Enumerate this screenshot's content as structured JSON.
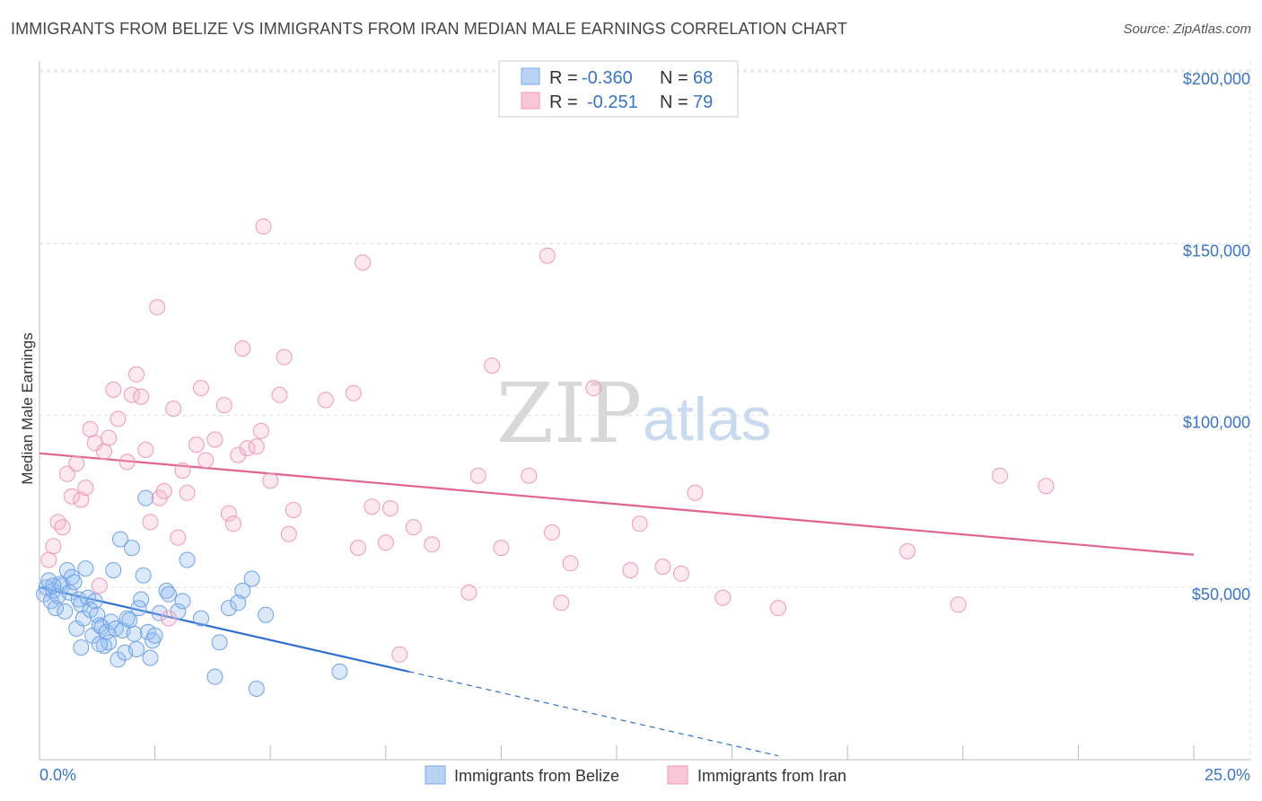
{
  "title": "IMMIGRANTS FROM BELIZE VS IMMIGRANTS FROM IRAN MEDIAN MALE EARNINGS CORRELATION CHART",
  "source": "Source: ZipAtlas.com",
  "watermark": {
    "zip": "ZIP",
    "atlas": "atlas"
  },
  "colors": {
    "belize": "#6fa3e8",
    "belize_line": "#2f6fd0",
    "iran": "#f0a0bb",
    "iran_line": "#e0648f",
    "axis_text": "#3a74c4"
  },
  "legend_box": {
    "rows": [
      {
        "r_label": "R =",
        "r_value": "-0.360",
        "n_label": "N =",
        "n_value": "68"
      },
      {
        "r_label": "R =",
        "r_value": "-0.251",
        "n_label": "N =",
        "n_value": "79"
      }
    ]
  },
  "bottom_legend": [
    "Immigrants from Belize",
    "Immigrants from Iran"
  ],
  "chart_data": {
    "type": "scatter",
    "title": "IMMIGRANTS FROM BELIZE VS IMMIGRANTS FROM IRAN MEDIAN MALE EARNINGS CORRELATION CHART",
    "xlabel": "",
    "ylabel": "Median Male Earnings",
    "xlim": [
      0,
      25
    ],
    "ylim": [
      0,
      205000
    ],
    "x_tick_labels": [
      "0.0%",
      "25.0%"
    ],
    "y_ticks": [
      50000,
      100000,
      150000,
      200000
    ],
    "y_tick_labels": [
      "$50,000",
      "$100,000",
      "$150,000",
      "$200,000"
    ],
    "series": [
      {
        "name": "Immigrants from Belize",
        "R": -0.36,
        "N": 68,
        "trend": {
          "x": [
            0,
            8
          ],
          "y": [
            50000,
            25500
          ],
          "dashed_to": [
            16,
            1000
          ]
        },
        "points": [
          [
            0.1,
            48000
          ],
          [
            0.15,
            50000
          ],
          [
            0.2,
            52000
          ],
          [
            0.25,
            46000
          ],
          [
            0.3,
            49000
          ],
          [
            0.35,
            44000
          ],
          [
            0.4,
            47500
          ],
          [
            0.45,
            51000
          ],
          [
            0.5,
            50500
          ],
          [
            0.55,
            43000
          ],
          [
            0.6,
            55000
          ],
          [
            0.65,
            48500
          ],
          [
            0.7,
            53000
          ],
          [
            0.75,
            51500
          ],
          [
            0.8,
            38000
          ],
          [
            0.85,
            46500
          ],
          [
            0.9,
            45000
          ],
          [
            0.95,
            41000
          ],
          [
            1.0,
            55500
          ],
          [
            1.05,
            47000
          ],
          [
            1.1,
            43500
          ],
          [
            1.15,
            36000
          ],
          [
            1.2,
            46000
          ],
          [
            1.25,
            42000
          ],
          [
            1.3,
            39000
          ],
          [
            1.35,
            38500
          ],
          [
            1.4,
            33000
          ],
          [
            1.45,
            37000
          ],
          [
            1.5,
            34000
          ],
          [
            1.55,
            40000
          ],
          [
            1.6,
            55000
          ],
          [
            1.65,
            38000
          ],
          [
            1.7,
            29000
          ],
          [
            1.75,
            64000
          ],
          [
            1.8,
            37500
          ],
          [
            1.85,
            31000
          ],
          [
            1.9,
            41000
          ],
          [
            1.95,
            40500
          ],
          [
            2.0,
            61500
          ],
          [
            2.05,
            36500
          ],
          [
            2.1,
            32000
          ],
          [
            2.15,
            44000
          ],
          [
            2.2,
            46500
          ],
          [
            2.25,
            53500
          ],
          [
            2.3,
            76000
          ],
          [
            2.35,
            37000
          ],
          [
            2.4,
            29500
          ],
          [
            2.45,
            34500
          ],
          [
            2.6,
            42500
          ],
          [
            2.75,
            49000
          ],
          [
            3.0,
            43000
          ],
          [
            3.1,
            46000
          ],
          [
            3.2,
            58000
          ],
          [
            3.5,
            41000
          ],
          [
            3.8,
            24000
          ],
          [
            3.9,
            34000
          ],
          [
            4.4,
            49000
          ],
          [
            4.1,
            44000
          ],
          [
            4.3,
            45500
          ],
          [
            2.5,
            36000
          ],
          [
            0.9,
            32500
          ],
          [
            1.3,
            33500
          ],
          [
            2.8,
            48000
          ],
          [
            4.6,
            52500
          ],
          [
            4.7,
            20500
          ],
          [
            4.9,
            42000
          ],
          [
            6.5,
            25500
          ],
          [
            0.3,
            50500
          ]
        ]
      },
      {
        "name": "Immigrants from Iran",
        "R": -0.251,
        "N": 79,
        "trend": {
          "x": [
            0,
            25
          ],
          "y": [
            89000,
            59500
          ]
        },
        "points": [
          [
            0.2,
            58000
          ],
          [
            0.3,
            62000
          ],
          [
            0.4,
            69000
          ],
          [
            0.5,
            67500
          ],
          [
            0.6,
            83000
          ],
          [
            0.7,
            76500
          ],
          [
            0.8,
            86000
          ],
          [
            0.9,
            75500
          ],
          [
            1.0,
            79000
          ],
          [
            1.1,
            96000
          ],
          [
            1.2,
            92000
          ],
          [
            1.3,
            50500
          ],
          [
            1.4,
            89500
          ],
          [
            1.5,
            93500
          ],
          [
            1.6,
            107500
          ],
          [
            1.7,
            99000
          ],
          [
            1.9,
            86500
          ],
          [
            2.0,
            106000
          ],
          [
            2.1,
            112000
          ],
          [
            2.2,
            105500
          ],
          [
            2.3,
            90000
          ],
          [
            2.4,
            69000
          ],
          [
            2.55,
            131500
          ],
          [
            2.6,
            76000
          ],
          [
            2.7,
            78000
          ],
          [
            2.8,
            41000
          ],
          [
            2.9,
            102000
          ],
          [
            3.0,
            64500
          ],
          [
            3.1,
            84000
          ],
          [
            3.2,
            77500
          ],
          [
            3.4,
            91500
          ],
          [
            3.5,
            108000
          ],
          [
            3.6,
            87000
          ],
          [
            3.8,
            93000
          ],
          [
            4.0,
            103000
          ],
          [
            4.1,
            71500
          ],
          [
            4.2,
            68500
          ],
          [
            4.3,
            88500
          ],
          [
            4.4,
            119500
          ],
          [
            4.5,
            90500
          ],
          [
            4.7,
            91000
          ],
          [
            4.8,
            95500
          ],
          [
            4.85,
            155000
          ],
          [
            5.0,
            81000
          ],
          [
            5.2,
            106000
          ],
          [
            5.3,
            117000
          ],
          [
            5.4,
            65500
          ],
          [
            5.5,
            72500
          ],
          [
            6.2,
            104500
          ],
          [
            6.8,
            106500
          ],
          [
            6.9,
            61500
          ],
          [
            7.0,
            144500
          ],
          [
            7.2,
            73500
          ],
          [
            7.5,
            63000
          ],
          [
            7.6,
            73000
          ],
          [
            7.8,
            30500
          ],
          [
            8.1,
            67500
          ],
          [
            8.5,
            62500
          ],
          [
            9.3,
            48500
          ],
          [
            9.5,
            82500
          ],
          [
            9.8,
            114500
          ],
          [
            10.0,
            61500
          ],
          [
            10.6,
            82500
          ],
          [
            11.0,
            146500
          ],
          [
            11.1,
            66000
          ],
          [
            11.3,
            45500
          ],
          [
            12.0,
            108000
          ],
          [
            12.8,
            55000
          ],
          [
            13.0,
            68500
          ],
          [
            13.5,
            56000
          ],
          [
            13.9,
            54000
          ],
          [
            14.2,
            77500
          ],
          [
            14.8,
            47000
          ],
          [
            16.0,
            44000
          ],
          [
            18.8,
            60500
          ],
          [
            19.9,
            45000
          ],
          [
            20.8,
            82500
          ],
          [
            21.8,
            79500
          ],
          [
            11.5,
            57000
          ]
        ]
      }
    ]
  }
}
